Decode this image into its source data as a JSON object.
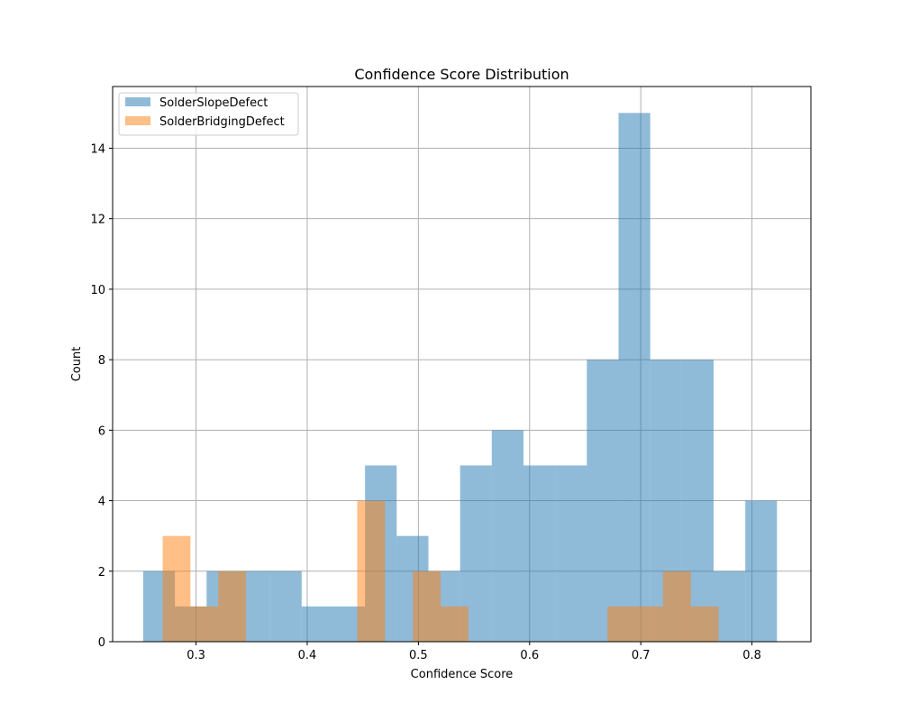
{
  "chart_data": {
    "type": "bar",
    "title": "Confidence Score Distribution",
    "xlabel": "Confidence Score",
    "ylabel": "Count",
    "xlim": [
      0.225,
      0.853
    ],
    "ylim": [
      0,
      15.75
    ],
    "xticks": [
      0.3,
      0.4,
      0.5,
      0.6,
      0.7,
      0.8
    ],
    "xtick_labels": [
      "0.3",
      "0.4",
      "0.5",
      "0.6",
      "0.7",
      "0.8"
    ],
    "yticks": [
      0,
      2,
      4,
      6,
      8,
      10,
      12,
      14
    ],
    "ytick_labels": [
      "0",
      "2",
      "4",
      "6",
      "8",
      "10",
      "12",
      "14"
    ],
    "grid": true,
    "legend_position": "top-left",
    "series": [
      {
        "name": "SolderSlopeDefect",
        "color": "#1f77b4",
        "opacity": 0.5,
        "bins": [
          {
            "x0": 0.2525,
            "x1": 0.281,
            "count": 2
          },
          {
            "x0": 0.281,
            "x1": 0.3095,
            "count": 1
          },
          {
            "x0": 0.3095,
            "x1": 0.338,
            "count": 2
          },
          {
            "x0": 0.338,
            "x1": 0.3665,
            "count": 2
          },
          {
            "x0": 0.3665,
            "x1": 0.395,
            "count": 2
          },
          {
            "x0": 0.395,
            "x1": 0.4235,
            "count": 1
          },
          {
            "x0": 0.4235,
            "x1": 0.452,
            "count": 1
          },
          {
            "x0": 0.452,
            "x1": 0.4805,
            "count": 5
          },
          {
            "x0": 0.4805,
            "x1": 0.509,
            "count": 3
          },
          {
            "x0": 0.509,
            "x1": 0.5375,
            "count": 2
          },
          {
            "x0": 0.5375,
            "x1": 0.566,
            "count": 5
          },
          {
            "x0": 0.566,
            "x1": 0.5945,
            "count": 6
          },
          {
            "x0": 0.5945,
            "x1": 0.623,
            "count": 5
          },
          {
            "x0": 0.623,
            "x1": 0.6515,
            "count": 5
          },
          {
            "x0": 0.6515,
            "x1": 0.68,
            "count": 8
          },
          {
            "x0": 0.68,
            "x1": 0.7085,
            "count": 15
          },
          {
            "x0": 0.7085,
            "x1": 0.737,
            "count": 8
          },
          {
            "x0": 0.737,
            "x1": 0.7655,
            "count": 8
          },
          {
            "x0": 0.7655,
            "x1": 0.794,
            "count": 2
          },
          {
            "x0": 0.794,
            "x1": 0.8225,
            "count": 4
          }
        ]
      },
      {
        "name": "SolderBridgingDefect",
        "color": "#ff7f0e",
        "opacity": 0.5,
        "bins": [
          {
            "x0": 0.27,
            "x1": 0.295,
            "count": 3
          },
          {
            "x0": 0.295,
            "x1": 0.32,
            "count": 1
          },
          {
            "x0": 0.32,
            "x1": 0.345,
            "count": 2
          },
          {
            "x0": 0.345,
            "x1": 0.37,
            "count": 0
          },
          {
            "x0": 0.37,
            "x1": 0.395,
            "count": 0
          },
          {
            "x0": 0.395,
            "x1": 0.42,
            "count": 0
          },
          {
            "x0": 0.42,
            "x1": 0.445,
            "count": 0
          },
          {
            "x0": 0.445,
            "x1": 0.47,
            "count": 4
          },
          {
            "x0": 0.47,
            "x1": 0.495,
            "count": 0
          },
          {
            "x0": 0.495,
            "x1": 0.52,
            "count": 2
          },
          {
            "x0": 0.52,
            "x1": 0.545,
            "count": 1
          },
          {
            "x0": 0.545,
            "x1": 0.57,
            "count": 0
          },
          {
            "x0": 0.57,
            "x1": 0.595,
            "count": 0
          },
          {
            "x0": 0.595,
            "x1": 0.62,
            "count": 0
          },
          {
            "x0": 0.62,
            "x1": 0.645,
            "count": 0
          },
          {
            "x0": 0.645,
            "x1": 0.67,
            "count": 0
          },
          {
            "x0": 0.67,
            "x1": 0.695,
            "count": 1
          },
          {
            "x0": 0.695,
            "x1": 0.72,
            "count": 1
          },
          {
            "x0": 0.72,
            "x1": 0.745,
            "count": 2
          },
          {
            "x0": 0.745,
            "x1": 0.77,
            "count": 1
          }
        ]
      }
    ]
  }
}
